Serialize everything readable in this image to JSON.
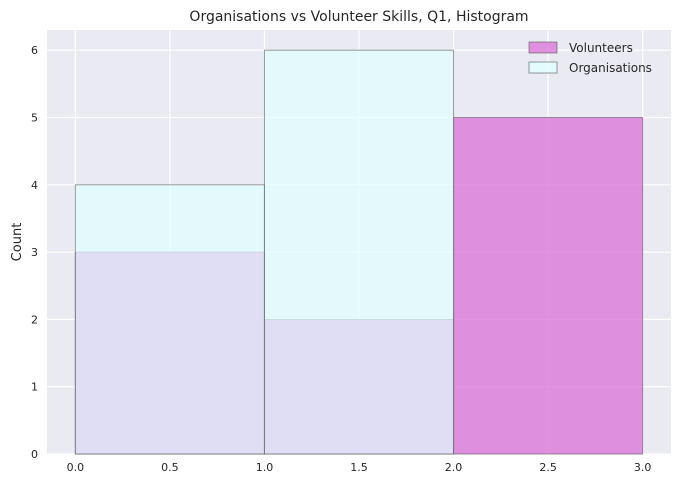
{
  "chart_data": {
    "type": "histogram",
    "title": "Organisations vs Volunteer Skills, Q1, Histogram",
    "xlabel": "",
    "ylabel": "Count",
    "xlim": [
      -0.15,
      3.15
    ],
    "ylim": [
      0,
      6.3
    ],
    "xticks": [
      "0.0",
      "0.5",
      "1.0",
      "1.5",
      "2.0",
      "2.5",
      "3.0"
    ],
    "yticks": [
      "0",
      "1",
      "2",
      "3",
      "4",
      "5",
      "6"
    ],
    "grid": true,
    "legend_position": "top-right",
    "bins": [
      [
        0,
        1
      ],
      [
        1,
        2
      ],
      [
        2,
        3
      ]
    ],
    "series": [
      {
        "name": "Volunteers",
        "values": [
          3,
          2,
          5
        ],
        "color": "#da70d6"
      },
      {
        "name": "Organisations",
        "values": [
          4,
          6,
          0
        ],
        "color": "#e0ffff"
      }
    ]
  }
}
